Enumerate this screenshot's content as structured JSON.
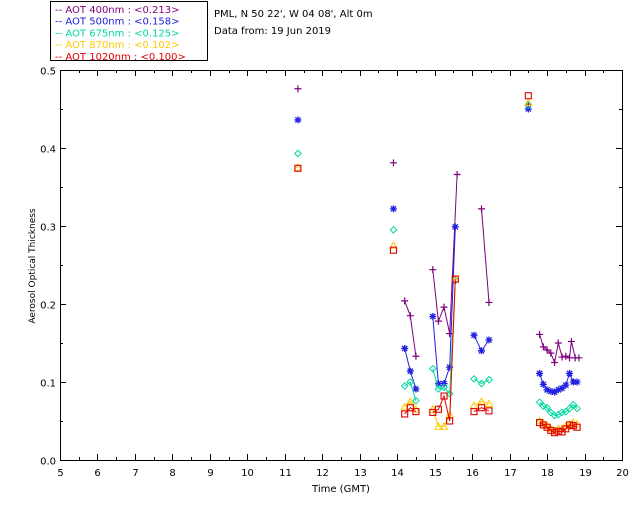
{
  "header": {
    "station_line": "PML, N 50 22', W 04 08', Alt 0m",
    "date_line": "Data from: 19 Jun 2019"
  },
  "legend": [
    {
      "prefix": "--",
      "label": "AOT  400nm : <0.213>",
      "color": "#7f007f"
    },
    {
      "prefix": "--",
      "label": "AOT  500nm : <0.158>",
      "color": "#2020e0"
    },
    {
      "prefix": "--",
      "label": "AOT  675nm : <0.125>",
      "color": "#00d7a0"
    },
    {
      "prefix": "--",
      "label": "AOT  870nm : <0.102>",
      "color": "#ffc800"
    },
    {
      "prefix": "--",
      "label": "AOT 1020nm : <0.100>",
      "color": "#e00000"
    }
  ],
  "chart_data": {
    "type": "line",
    "xlabel": "Time (GMT)",
    "ylabel": "Aerosol Optical Thickness",
    "xlim": [
      5,
      20
    ],
    "ylim": [
      0,
      0.5
    ],
    "xticks": [
      5,
      6,
      7,
      8,
      9,
      10,
      11,
      12,
      13,
      14,
      15,
      16,
      17,
      18,
      19,
      20
    ],
    "yticks": [
      0.0,
      0.1,
      0.2,
      0.3,
      0.4,
      0.5
    ],
    "ytick_labels": [
      "0.0",
      "0.1",
      "0.2",
      "0.3",
      "0.4",
      "0.5"
    ],
    "grid": false,
    "series": [
      {
        "name": "AOT  400nm",
        "color": "#7f007f",
        "marker": "plus",
        "segments": [
          [
            [
              11.35,
              0.476
            ]
          ],
          [
            [
              13.9,
              0.381
            ]
          ],
          [
            [
              14.2,
              0.204
            ],
            [
              14.35,
              0.185
            ],
            [
              14.5,
              0.133
            ]
          ],
          [
            [
              14.95,
              0.244
            ],
            [
              15.1,
              0.178
            ],
            [
              15.25,
              0.196
            ],
            [
              15.4,
              0.162
            ],
            [
              15.6,
              0.366
            ]
          ],
          [
            [
              16.25,
              0.322
            ],
            [
              16.45,
              0.202
            ]
          ],
          [
            [
              17.5,
              0.455
            ]
          ],
          [
            [
              17.8,
              0.161
            ],
            [
              17.9,
              0.145
            ],
            [
              18.0,
              0.141
            ],
            [
              18.1,
              0.137
            ],
            [
              18.2,
              0.125
            ],
            [
              18.3,
              0.15
            ],
            [
              18.4,
              0.132
            ],
            [
              18.5,
              0.133
            ],
            [
              18.6,
              0.131
            ],
            [
              18.65,
              0.152
            ],
            [
              18.75,
              0.131
            ],
            [
              18.85,
              0.131
            ]
          ]
        ]
      },
      {
        "name": "AOT  500nm",
        "color": "#2020e0",
        "marker": "asterisk",
        "segments": [
          [
            [
              11.35,
              0.436
            ]
          ],
          [
            [
              13.9,
              0.322
            ]
          ],
          [
            [
              14.2,
              0.143
            ],
            [
              14.35,
              0.114
            ],
            [
              14.5,
              0.091
            ]
          ],
          [
            [
              14.95,
              0.184
            ],
            [
              15.1,
              0.098
            ],
            [
              15.25,
              0.098
            ],
            [
              15.4,
              0.119
            ],
            [
              15.55,
              0.299
            ]
          ],
          [
            [
              16.05,
              0.16
            ],
            [
              16.25,
              0.14
            ],
            [
              16.45,
              0.154
            ]
          ],
          [
            [
              17.5,
              0.45
            ]
          ],
          [
            [
              17.8,
              0.111
            ],
            [
              17.9,
              0.097
            ],
            [
              18.0,
              0.09
            ],
            [
              18.1,
              0.088
            ],
            [
              18.2,
              0.087
            ],
            [
              18.3,
              0.09
            ],
            [
              18.4,
              0.092
            ],
            [
              18.5,
              0.096
            ],
            [
              18.6,
              0.111
            ],
            [
              18.7,
              0.1
            ],
            [
              18.8,
              0.1
            ]
          ]
        ]
      },
      {
        "name": "AOT  675nm",
        "color": "#00d7a0",
        "marker": "diamond",
        "segments": [
          [
            [
              11.35,
              0.393
            ]
          ],
          [
            [
              13.9,
              0.295
            ]
          ],
          [
            [
              14.2,
              0.095
            ],
            [
              14.35,
              0.1
            ],
            [
              14.5,
              0.076
            ]
          ],
          [
            [
              14.95,
              0.117
            ],
            [
              15.1,
              0.091
            ],
            [
              15.25,
              0.093
            ],
            [
              15.4,
              0.085
            ],
            [
              15.55,
              0.23
            ]
          ],
          [
            [
              16.05,
              0.104
            ],
            [
              16.25,
              0.098
            ],
            [
              16.45,
              0.103
            ]
          ],
          [
            [
              17.5,
              0.455
            ]
          ],
          [
            [
              17.8,
              0.074
            ],
            [
              17.9,
              0.069
            ],
            [
              18.0,
              0.067
            ],
            [
              18.1,
              0.061
            ],
            [
              18.2,
              0.057
            ],
            [
              18.3,
              0.058
            ],
            [
              18.4,
              0.061
            ],
            [
              18.5,
              0.062
            ],
            [
              18.6,
              0.066
            ],
            [
              18.7,
              0.071
            ],
            [
              18.8,
              0.066
            ]
          ]
        ]
      },
      {
        "name": "AOT  870nm",
        "color": "#ffc800",
        "marker": "triangle",
        "segments": [
          [
            [
              11.35,
              0.375
            ]
          ],
          [
            [
              13.9,
              0.275
            ]
          ],
          [
            [
              14.2,
              0.068
            ],
            [
              14.35,
              0.075
            ],
            [
              14.5,
              0.065
            ]
          ],
          [
            [
              14.95,
              0.065
            ],
            [
              15.1,
              0.043
            ],
            [
              15.25,
              0.043
            ],
            [
              15.4,
              0.058
            ],
            [
              15.55,
              0.232
            ]
          ],
          [
            [
              16.05,
              0.07
            ],
            [
              16.25,
              0.075
            ],
            [
              16.45,
              0.072
            ]
          ],
          [
            [
              17.5,
              0.458
            ]
          ],
          [
            [
              17.8,
              0.05
            ],
            [
              17.9,
              0.047
            ],
            [
              18.0,
              0.044
            ],
            [
              18.1,
              0.04
            ],
            [
              18.2,
              0.037
            ],
            [
              18.3,
              0.04
            ],
            [
              18.4,
              0.04
            ],
            [
              18.5,
              0.043
            ],
            [
              18.6,
              0.046
            ],
            [
              18.7,
              0.048
            ],
            [
              18.8,
              0.046
            ]
          ]
        ]
      },
      {
        "name": "AOT 1020nm",
        "color": "#e00000",
        "marker": "square",
        "segments": [
          [
            [
              11.35,
              0.374
            ]
          ],
          [
            [
              13.9,
              0.269
            ]
          ],
          [
            [
              14.2,
              0.059
            ],
            [
              14.35,
              0.067
            ],
            [
              14.5,
              0.062
            ]
          ],
          [
            [
              14.95,
              0.061
            ],
            [
              15.1,
              0.065
            ],
            [
              15.25,
              0.082
            ],
            [
              15.4,
              0.05
            ],
            [
              15.55,
              0.232
            ]
          ],
          [
            [
              16.05,
              0.062
            ],
            [
              16.25,
              0.067
            ],
            [
              16.45,
              0.063
            ]
          ],
          [
            [
              17.5,
              0.467
            ]
          ],
          [
            [
              17.8,
              0.048
            ],
            [
              17.9,
              0.045
            ],
            [
              18.0,
              0.042
            ],
            [
              18.1,
              0.038
            ],
            [
              18.2,
              0.035
            ],
            [
              18.3,
              0.037
            ],
            [
              18.4,
              0.036
            ],
            [
              18.5,
              0.04
            ],
            [
              18.6,
              0.045
            ],
            [
              18.7,
              0.044
            ],
            [
              18.8,
              0.042
            ]
          ]
        ]
      }
    ]
  }
}
